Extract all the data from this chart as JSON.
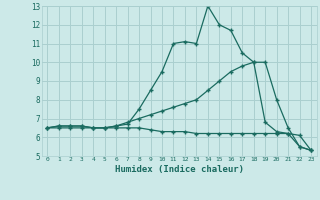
{
  "xlabel": "Humidex (Indice chaleur)",
  "bg_color": "#cce9e8",
  "grid_color": "#aacfcf",
  "line_color": "#1a6b60",
  "xlim": [
    -0.5,
    23.5
  ],
  "ylim": [
    5,
    13
  ],
  "xticks": [
    0,
    1,
    2,
    3,
    4,
    5,
    6,
    7,
    8,
    9,
    10,
    11,
    12,
    13,
    14,
    15,
    16,
    17,
    18,
    19,
    20,
    21,
    22,
    23
  ],
  "yticks": [
    5,
    6,
    7,
    8,
    9,
    10,
    11,
    12,
    13
  ],
  "line1_x": [
    0,
    1,
    2,
    3,
    4,
    5,
    6,
    7,
    8,
    9,
    10,
    11,
    12,
    13,
    14,
    15,
    16,
    17,
    18,
    19,
    20,
    21,
    22,
    23
  ],
  "line1_y": [
    6.5,
    6.6,
    6.6,
    6.6,
    6.5,
    6.5,
    6.6,
    6.7,
    7.5,
    8.5,
    9.5,
    11.0,
    11.1,
    11.0,
    13.0,
    12.0,
    11.7,
    10.5,
    10.0,
    6.8,
    6.3,
    6.2,
    5.5,
    5.3
  ],
  "line2_x": [
    0,
    1,
    2,
    3,
    4,
    5,
    6,
    7,
    8,
    9,
    10,
    11,
    12,
    13,
    14,
    15,
    16,
    17,
    18,
    19,
    20,
    21,
    22,
    23
  ],
  "line2_y": [
    6.5,
    6.6,
    6.6,
    6.6,
    6.5,
    6.5,
    6.6,
    6.8,
    7.0,
    7.2,
    7.4,
    7.6,
    7.8,
    8.0,
    8.5,
    9.0,
    9.5,
    9.8,
    10.0,
    10.0,
    8.0,
    6.5,
    5.5,
    5.3
  ],
  "line3_x": [
    0,
    1,
    2,
    3,
    4,
    5,
    6,
    7,
    8,
    9,
    10,
    11,
    12,
    13,
    14,
    15,
    16,
    17,
    18,
    19,
    20,
    21,
    22,
    23
  ],
  "line3_y": [
    6.5,
    6.5,
    6.5,
    6.5,
    6.5,
    6.5,
    6.5,
    6.5,
    6.5,
    6.4,
    6.3,
    6.3,
    6.3,
    6.2,
    6.2,
    6.2,
    6.2,
    6.2,
    6.2,
    6.2,
    6.2,
    6.2,
    6.1,
    5.3
  ]
}
